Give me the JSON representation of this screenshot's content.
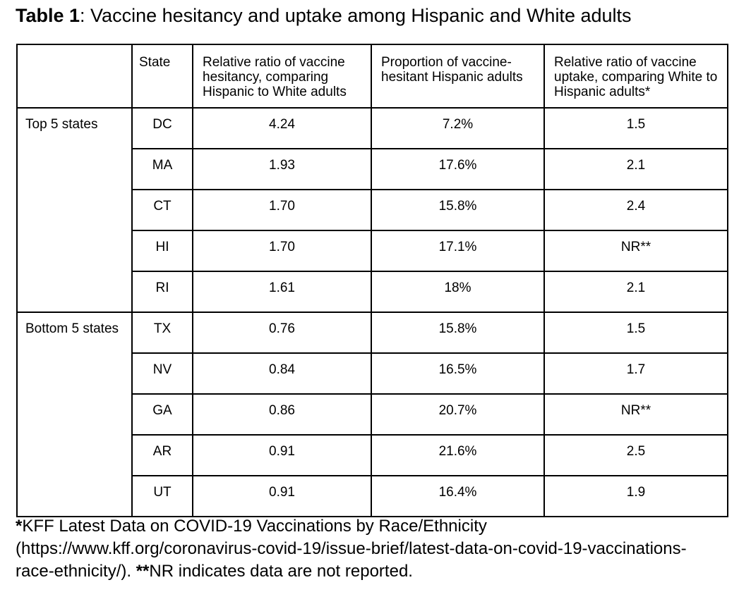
{
  "title": {
    "label": "Table 1",
    "text": ": Vaccine hesitancy and uptake among Hispanic and White adults"
  },
  "table": {
    "columns": [
      "",
      "State",
      "Relative ratio of vaccine hesitancy, comparing Hispanic to White adults",
      "Proportion of vaccine-hesitant Hispanic adults",
      "Relative ratio of vaccine uptake, comparing White to Hispanic adults*"
    ],
    "groups": [
      {
        "label": "Top 5 states",
        "rows": [
          {
            "state": "DC",
            "hesitancy_ratio": "4.24",
            "hesitant_proportion": "7.2%",
            "uptake_ratio": "1.5"
          },
          {
            "state": "MA",
            "hesitancy_ratio": "1.93",
            "hesitant_proportion": "17.6%",
            "uptake_ratio": "2.1"
          },
          {
            "state": "CT",
            "hesitancy_ratio": "1.70",
            "hesitant_proportion": "15.8%",
            "uptake_ratio": "2.4"
          },
          {
            "state": "HI",
            "hesitancy_ratio": "1.70",
            "hesitant_proportion": "17.1%",
            "uptake_ratio": "NR**"
          },
          {
            "state": "RI",
            "hesitancy_ratio": "1.61",
            "hesitant_proportion": "18%",
            "uptake_ratio": "2.1"
          }
        ]
      },
      {
        "label": "Bottom 5 states",
        "rows": [
          {
            "state": "TX",
            "hesitancy_ratio": "0.76",
            "hesitant_proportion": "15.8%",
            "uptake_ratio": "1.5"
          },
          {
            "state": "NV",
            "hesitancy_ratio": "0.84",
            "hesitant_proportion": "16.5%",
            "uptake_ratio": "1.7"
          },
          {
            "state": "GA",
            "hesitancy_ratio": "0.86",
            "hesitant_proportion": "20.7%",
            "uptake_ratio": "NR**"
          },
          {
            "state": "AR",
            "hesitancy_ratio": "0.91",
            "hesitant_proportion": "21.6%",
            "uptake_ratio": "2.5"
          },
          {
            "state": "UT",
            "hesitancy_ratio": "0.91",
            "hesitant_proportion": "16.4%",
            "uptake_ratio": "1.9"
          }
        ]
      }
    ]
  },
  "footnote": {
    "star1": "*",
    "line1": "KFF Latest Data on COVID-19 Vaccinations by Race/Ethnicity",
    "line2": "(https://www.kff.org/coronavirus-covid-19/issue-brief/latest-data-on-covid-19-vaccinations-",
    "line3_pre": "race-ethnicity/). ",
    "star2": "**",
    "line3_post": "NR indicates data are not reported."
  },
  "colors": {
    "background": "#ffffff",
    "text": "#000000",
    "border": "#000000"
  }
}
